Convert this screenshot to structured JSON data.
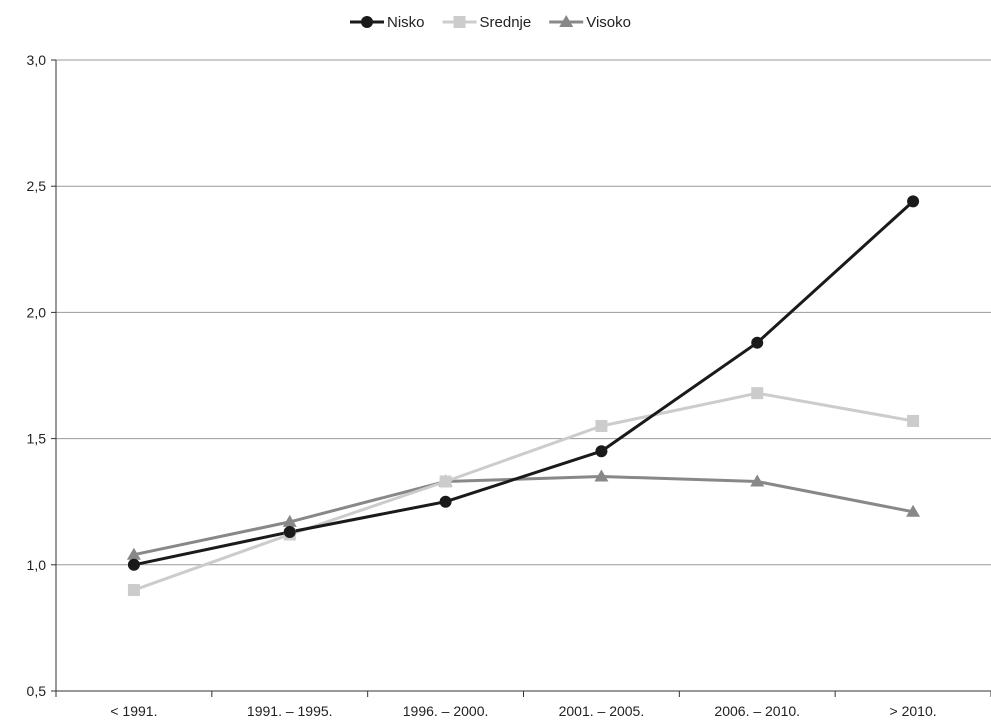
{
  "chart_data": {
    "type": "line",
    "title": "",
    "xlabel": "",
    "ylabel": "",
    "categories": [
      "< 1991.",
      "1991. – 1995.",
      "1996. – 2000.",
      "2001. – 2005.",
      "2006. – 2010.",
      "> 2010."
    ],
    "y_tick_labels": [
      "0,5",
      "1,0",
      "1,5",
      "2,0",
      "2,5",
      "3,0"
    ],
    "ylim": [
      0.5,
      3.0
    ],
    "y_ticks": [
      0.5,
      1.0,
      1.5,
      2.0,
      2.5,
      3.0
    ],
    "grid": true,
    "legend_position": "top-center",
    "series": [
      {
        "name": "Nisko",
        "marker": "circle",
        "color": "#1a1a1a",
        "values": [
          1.0,
          1.13,
          1.25,
          1.45,
          1.88,
          2.44
        ]
      },
      {
        "name": "Srednje",
        "marker": "square",
        "color": "#cccccc",
        "values": [
          0.9,
          1.12,
          1.33,
          1.55,
          1.68,
          1.57
        ]
      },
      {
        "name": "Visoko",
        "marker": "triangle",
        "color": "#888888",
        "values": [
          1.04,
          1.17,
          1.33,
          1.35,
          1.33,
          1.21
        ]
      }
    ]
  }
}
